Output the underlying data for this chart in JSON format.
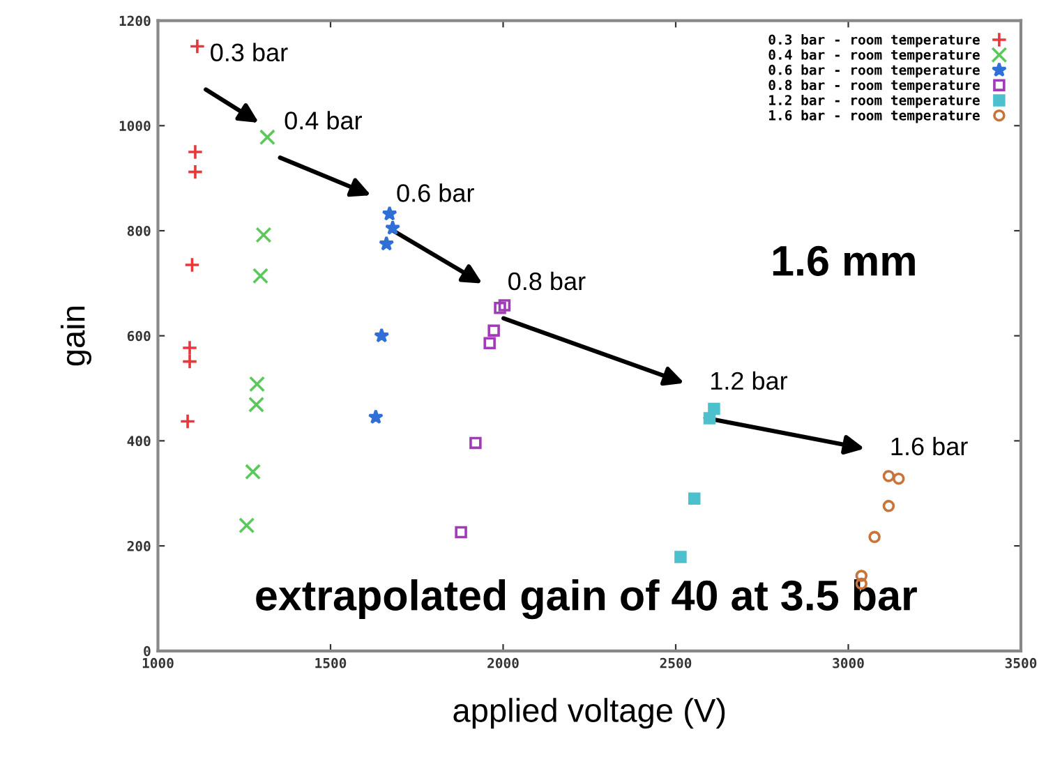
{
  "chart_data": {
    "type": "scatter",
    "xlabel": "applied voltage (V)",
    "ylabel": "gain",
    "xlim": [
      1000,
      3500
    ],
    "xticks": [
      1000,
      1500,
      2000,
      2500,
      3000,
      3500
    ],
    "ylim": [
      0,
      1200
    ],
    "yticks": [
      0,
      200,
      400,
      600,
      800,
      1000,
      1200
    ],
    "grid": false,
    "legend": "top right",
    "series": [
      {
        "name": "0.3 bar - room temperature",
        "color": "#e8383b",
        "marker": "plus",
        "x": [
          1114,
          1108,
          1108,
          1099,
          1092,
          1092,
          1086
        ],
        "values": [
          1151,
          950,
          912,
          735,
          577,
          551,
          437
        ]
      },
      {
        "name": "0.4 bar - room temperature",
        "color": "#5cc85c",
        "marker": "cross",
        "x": [
          1317,
          1306,
          1297,
          1287,
          1285,
          1275,
          1257
        ],
        "values": [
          978,
          792,
          714,
          508,
          469,
          341,
          239
        ]
      },
      {
        "name": "0.6 bar - room temperature",
        "color": "#2f6fd6",
        "marker": "star",
        "x": [
          1671,
          1680,
          1662,
          1648,
          1631
        ],
        "values": [
          832,
          805,
          775,
          600,
          445
        ]
      },
      {
        "name": "0.8 bar - room temperature",
        "color": "#a23bb8",
        "marker": "square",
        "x": [
          2004,
          1991,
          1973,
          1961,
          1920,
          1878
        ],
        "values": [
          658,
          653,
          610,
          586,
          396,
          226
        ]
      },
      {
        "name": "1.2 bar - room temperature",
        "color": "#4cc0cc",
        "marker": "square",
        "x": [
          2611,
          2598,
          2554,
          2514
        ],
        "values": [
          461,
          443,
          290,
          179
        ]
      },
      {
        "name": "1.6 bar - room temperature",
        "color": "#c8733a",
        "marker": "circle",
        "x": [
          3117,
          3146,
          3117,
          3076,
          3038,
          3038
        ],
        "values": [
          333,
          328,
          276,
          217,
          143,
          128
        ]
      }
    ],
    "annotations": [
      "0.3 bar",
      "0.4 bar",
      "0.6 bar",
      "0.8 bar",
      "1.2 bar",
      "1.6 bar",
      "1.6 mm",
      "extrapolated gain of 40 at 3.5 bar"
    ]
  }
}
